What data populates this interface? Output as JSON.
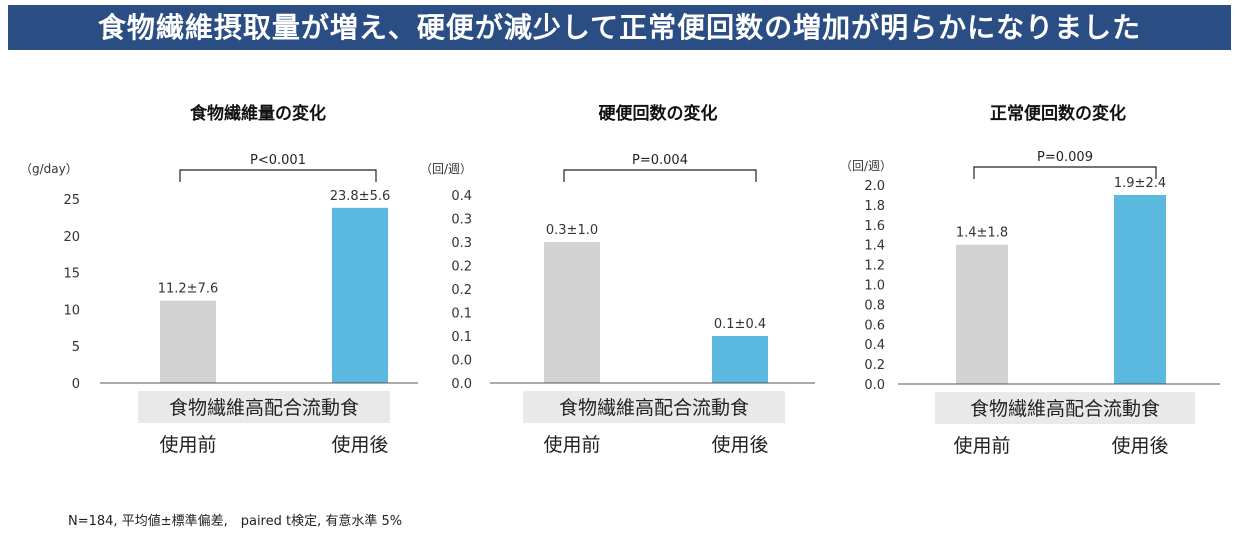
{
  "banner": {
    "title": "食物繊維摂取量が増え、硬便が減少して正常便回数の増加が明らかになりました"
  },
  "footnote": "N=184, 平均値±標準偏差,　paired t検定, 有意水準 5%",
  "colors": {
    "banner": "#2a4d83",
    "before": "#d3d3d3",
    "after": "#5bb8de",
    "axis": "#555555"
  },
  "chart_data": [
    {
      "type": "bar",
      "title": "食物繊維量の変化",
      "unit": "（g/day）",
      "yticks": [
        "25",
        "20",
        "15",
        "10",
        "5",
        "0"
      ],
      "ylim": [
        0,
        25
      ],
      "group_label": "食物繊維高配合流動食",
      "categories": [
        "使用前",
        "使用後"
      ],
      "values": [
        11.2,
        23.8
      ],
      "data_labels": [
        "11.2±7.6",
        "23.8±5.6"
      ],
      "pvalue": "P<0.001"
    },
    {
      "type": "bar",
      "title": "硬便回数の変化",
      "unit": "（回/週）",
      "yticks": [
        "0.4",
        "0.3",
        "0.3",
        "0.2",
        "0.2",
        "0.1",
        "0.1",
        "0.0",
        "0.0"
      ],
      "ylim": [
        0,
        0.4
      ],
      "group_label": "食物繊維高配合流動食",
      "categories": [
        "使用前",
        "使用後"
      ],
      "values": [
        0.3,
        0.1
      ],
      "data_labels": [
        "0.3±1.0",
        "0.1±0.4"
      ],
      "pvalue": "P=0.004"
    },
    {
      "type": "bar",
      "title": "正常便回数の変化",
      "unit": "（回/週）",
      "yticks": [
        "2.0",
        "1.8",
        "1.6",
        "1.4",
        "1.2",
        "1.0",
        "0.8",
        "0.6",
        "0.4",
        "0.2",
        "0.0"
      ],
      "ylim": [
        0,
        2.0
      ],
      "group_label": "食物繊維高配合流動食",
      "categories": [
        "使用前",
        "使用後"
      ],
      "values": [
        1.4,
        1.9
      ],
      "data_labels": [
        "1.4±1.8",
        "1.9±2.4"
      ],
      "pvalue": "P=0.009"
    }
  ]
}
